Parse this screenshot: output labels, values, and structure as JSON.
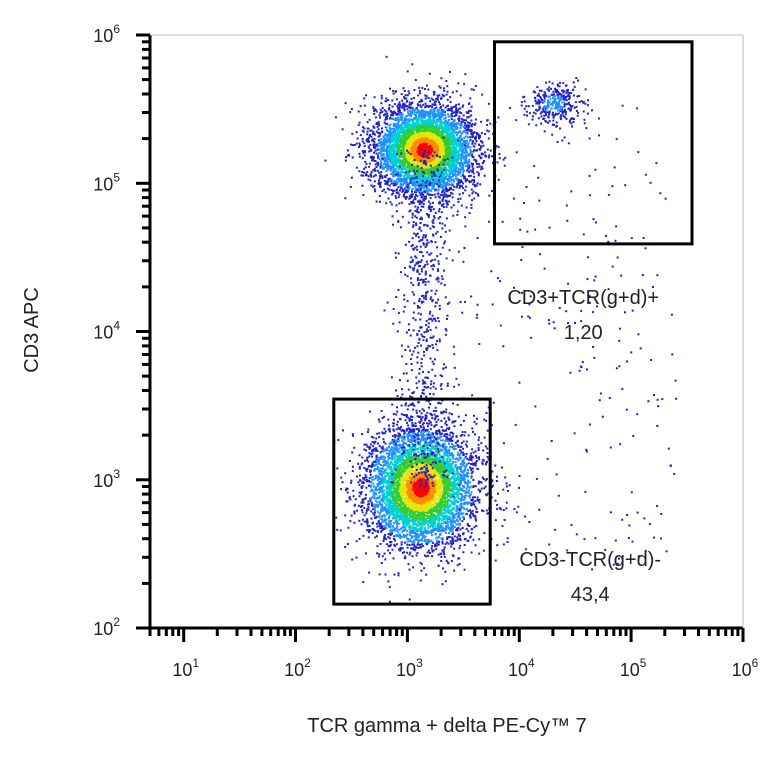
{
  "chart_data": {
    "type": "scatter",
    "subtype": "flow-cytometry-density",
    "xlabel": "TCR gamma + delta  PE-Cy™ 7",
    "ylabel": "CD3 APC",
    "x_scale": "log",
    "y_scale": "log",
    "xlim": [
      5,
      1000000
    ],
    "ylim": [
      100,
      1000000
    ],
    "x_ticks": [
      {
        "base": "10",
        "exp": "1",
        "value": 10
      },
      {
        "base": "10",
        "exp": "2",
        "value": 100
      },
      {
        "base": "10",
        "exp": "3",
        "value": 1000
      },
      {
        "base": "10",
        "exp": "4",
        "value": 10000
      },
      {
        "base": "10",
        "exp": "5",
        "value": 100000
      },
      {
        "base": "10",
        "exp": "6",
        "value": 1000000
      }
    ],
    "y_ticks": [
      {
        "base": "10",
        "exp": "2",
        "value": 100
      },
      {
        "base": "10",
        "exp": "3",
        "value": 1000
      },
      {
        "base": "10",
        "exp": "4",
        "value": 10000
      },
      {
        "base": "10",
        "exp": "5",
        "value": 100000
      },
      {
        "base": "10",
        "exp": "6",
        "value": 1000000
      }
    ],
    "populations": [
      {
        "center_x": 1400,
        "center_y": 170000,
        "spread_x_log10": 0.22,
        "spread_y_log10": 0.15,
        "relative_density": 1.0
      },
      {
        "center_x": 1300,
        "center_y": 900,
        "spread_x_log10": 0.24,
        "spread_y_log10": 0.2,
        "relative_density": 1.0
      },
      {
        "center_x": 20000,
        "center_y": 350000,
        "spread_x_log10": 0.12,
        "spread_y_log10": 0.07,
        "relative_density": 0.12
      }
    ],
    "gates": [
      {
        "name": "CD3+TCR(g+d)+",
        "value": "1,20",
        "x_range": [
          6000,
          350000
        ],
        "y_range": [
          39000,
          900000
        ]
      },
      {
        "name": "CD3-TCR(g+d)-",
        "value": "43,4",
        "x_range": [
          220,
          5500
        ],
        "y_range": [
          145,
          3500
        ]
      }
    ],
    "density_colors": [
      "#2020c8",
      "#1e90ff",
      "#00d0d0",
      "#32cd32",
      "#e6e600",
      "#ff8c00",
      "#ff0000"
    ],
    "grid": false,
    "legend": "none"
  }
}
